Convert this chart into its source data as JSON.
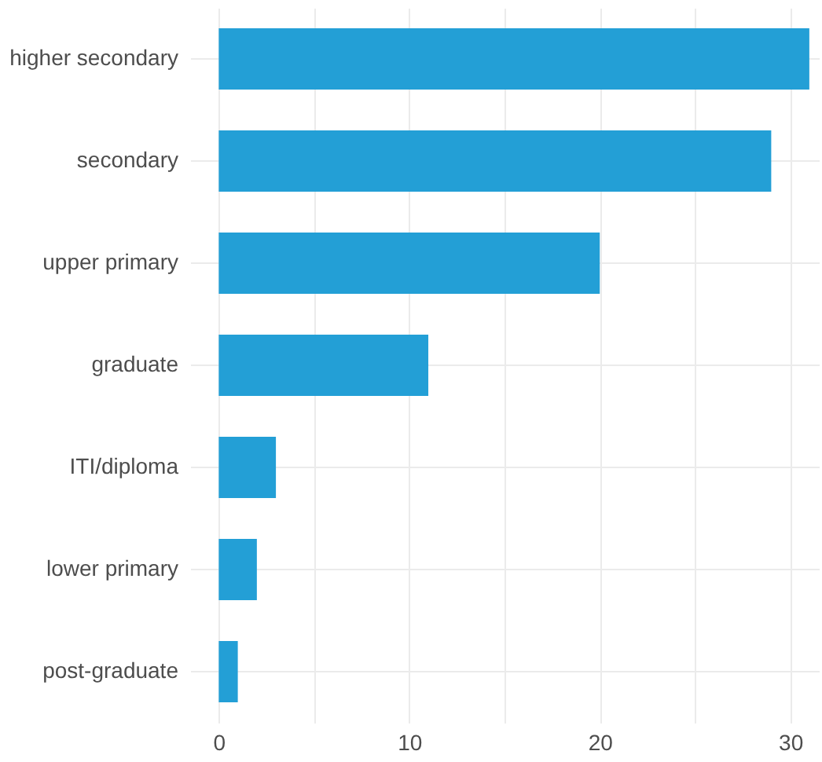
{
  "chart_data": {
    "type": "bar",
    "orientation": "horizontal",
    "categories": [
      "higher secondary",
      "secondary",
      "upper primary",
      "graduate",
      "ITI/diploma",
      "lower primary",
      "post-graduate"
    ],
    "values": [
      31,
      29,
      20,
      11,
      3,
      2,
      1
    ],
    "color": "#239fd6",
    "xlim": [
      -1.5,
      31.5
    ],
    "xticks": [
      0,
      {
        "value": 5,
        "label": null
      },
      10,
      {
        "value": 15,
        "label": null
      },
      20,
      {
        "value": 25,
        "label": null
      },
      30
    ],
    "grid": true
  }
}
